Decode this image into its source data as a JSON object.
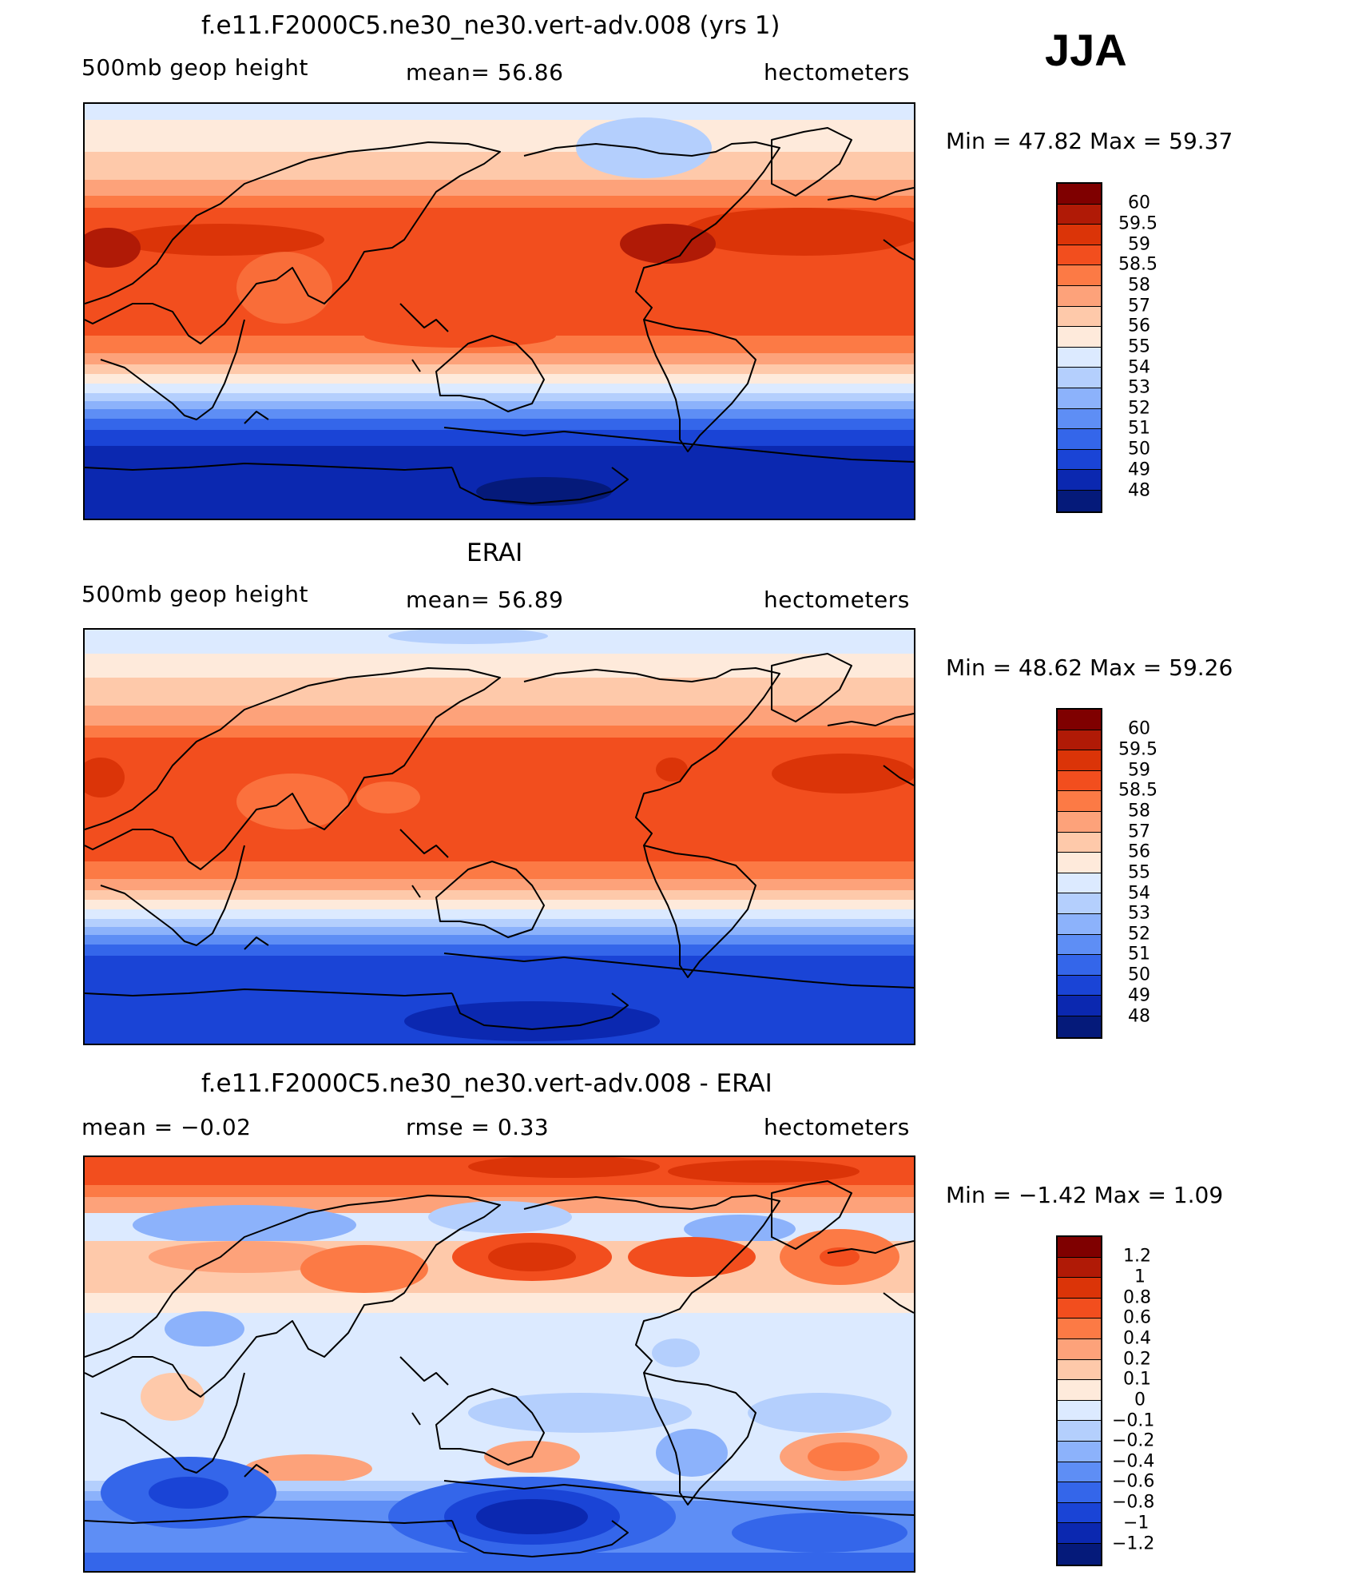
{
  "season": "JJA",
  "panels": [
    {
      "id": "model",
      "title": "f.e11.F2000C5.ne30_ne30.vert-adv.008 (yrs 1)",
      "left_label": "500mb  geop  height",
      "center_label": "mean=   56.86",
      "units": "hectometers",
      "minmax": "Min  =    47.82  Max  =    59.37",
      "scale_labels": [
        "60",
        "59.5",
        "59",
        "58.5",
        "58",
        "57",
        "56",
        "55",
        "54",
        "53",
        "52",
        "51",
        "50",
        "49",
        "48"
      ],
      "scale_colors": [
        "#7f0000",
        "#b01a06",
        "#db3408",
        "#f24e1e",
        "#fc7a45",
        "#fda27a",
        "#fec9aa",
        "#feeadb",
        "#dceaff",
        "#b4cffd",
        "#8cb2fb",
        "#5e8ef5",
        "#3466ea",
        "#1a44d6",
        "#0b28b0",
        "#051a7a"
      ]
    },
    {
      "id": "obs",
      "title": "ERAI",
      "left_label": "500mb  geop  height",
      "center_label": "mean=   56.89",
      "units": "hectometers",
      "minmax": "Min  =    48.62  Max  =    59.26",
      "scale_labels": [
        "60",
        "59.5",
        "59",
        "58.5",
        "58",
        "57",
        "56",
        "55",
        "54",
        "53",
        "52",
        "51",
        "50",
        "49",
        "48"
      ],
      "scale_colors": [
        "#7f0000",
        "#b01a06",
        "#db3408",
        "#f24e1e",
        "#fc7a45",
        "#fda27a",
        "#fec9aa",
        "#feeadb",
        "#dceaff",
        "#b4cffd",
        "#8cb2fb",
        "#5e8ef5",
        "#3466ea",
        "#1a44d6",
        "#0b28b0",
        "#051a7a"
      ]
    },
    {
      "id": "diff",
      "title": "f.e11.F2000C5.ne30_ne30.vert-adv.008 - ERAI",
      "left_label": "mean  =    −0.02",
      "center_label": "rmse  =     0.33",
      "units": "hectometers",
      "minmax": "Min  =   −1.42  Max  =     1.09",
      "scale_labels": [
        "1.2",
        "1",
        "0.8",
        "0.6",
        "0.4",
        "0.2",
        "0.1",
        "0",
        "−0.1",
        "−0.2",
        "−0.4",
        "−0.6",
        "−0.8",
        "−1",
        "−1.2"
      ],
      "scale_colors": [
        "#7f0000",
        "#b01a06",
        "#db3408",
        "#f24e1e",
        "#fc7a45",
        "#fda27a",
        "#fec9aa",
        "#feeadb",
        "#dceaff",
        "#b4cffd",
        "#8cb2fb",
        "#5e8ef5",
        "#3466ea",
        "#1a44d6",
        "#0b28b0",
        "#051a7a"
      ]
    }
  ]
}
